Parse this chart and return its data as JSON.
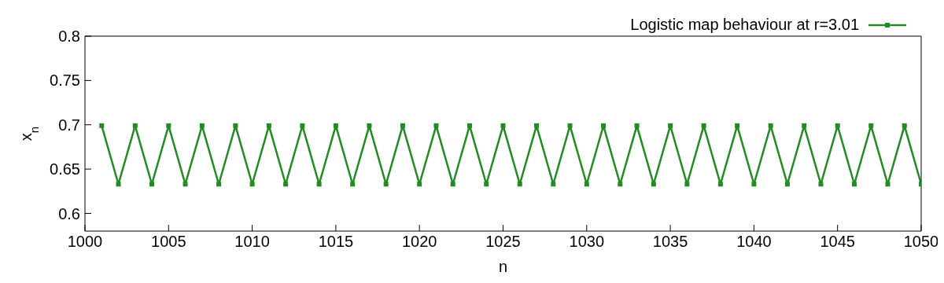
{
  "chart_data": {
    "type": "line",
    "xlabel": "n",
    "ylabel": "x$_{n}$",
    "x": [
      1001,
      1002,
      1003,
      1004,
      1005,
      1006,
      1007,
      1008,
      1009,
      1010,
      1011,
      1012,
      1013,
      1014,
      1015,
      1016,
      1017,
      1018,
      1019,
      1020,
      1021,
      1022,
      1023,
      1024,
      1025,
      1026,
      1027,
      1028,
      1029,
      1030,
      1031,
      1032,
      1033,
      1034,
      1035,
      1036,
      1037,
      1038,
      1039,
      1040,
      1041,
      1042,
      1043,
      1044,
      1045,
      1046,
      1047,
      1048,
      1049,
      1050
    ],
    "series": [
      {
        "name": "Logistic map behaviour at r=3.01",
        "color": "#228b22",
        "values": [
          0.699,
          0.633,
          0.699,
          0.633,
          0.699,
          0.633,
          0.699,
          0.633,
          0.699,
          0.633,
          0.699,
          0.633,
          0.699,
          0.633,
          0.699,
          0.633,
          0.699,
          0.633,
          0.699,
          0.633,
          0.699,
          0.633,
          0.699,
          0.633,
          0.699,
          0.633,
          0.699,
          0.633,
          0.699,
          0.633,
          0.699,
          0.633,
          0.699,
          0.633,
          0.699,
          0.633,
          0.699,
          0.633,
          0.699,
          0.633,
          0.699,
          0.633,
          0.699,
          0.633,
          0.699,
          0.633,
          0.699,
          0.633,
          0.699,
          0.633
        ]
      }
    ],
    "xlim": [
      1000,
      1050
    ],
    "xticks": [
      1000,
      1005,
      1010,
      1015,
      1020,
      1025,
      1030,
      1035,
      1040,
      1045,
      1050
    ],
    "ylim": [
      0.58,
      0.8
    ],
    "yticks": [
      0.6,
      0.65,
      0.7,
      0.75,
      0.8
    ],
    "grid": false,
    "legend": "top right",
    "marker": "square",
    "line_style": "solid"
  }
}
